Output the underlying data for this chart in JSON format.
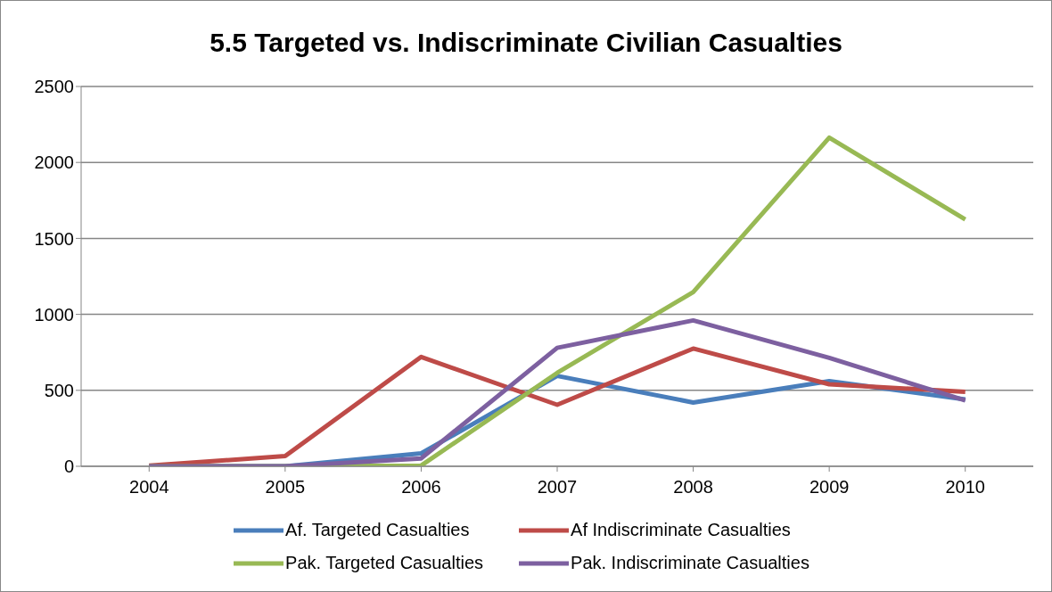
{
  "chart_data": {
    "type": "line",
    "title": "5.5 Targeted vs. Indiscriminate Civilian Casualties",
    "categories": [
      "2004",
      "2005",
      "2006",
      "2007",
      "2008",
      "2009",
      "2010"
    ],
    "series": [
      {
        "name": "Af. Targeted Casualties",
        "color": "#4a7ebb",
        "values": [
          0,
          0,
          85,
          595,
          420,
          560,
          440
        ]
      },
      {
        "name": "Af Indiscriminate Casualties",
        "color": "#be4b48",
        "values": [
          5,
          67,
          720,
          405,
          775,
          540,
          490
        ]
      },
      {
        "name": "Pak. Targeted Casualties",
        "color": "#98b954",
        "values": [
          0,
          0,
          5,
          615,
          1147,
          2163,
          1625
        ]
      },
      {
        "name": "Pak. Indiscriminate Casualties",
        "color": "#7d60a0",
        "values": [
          0,
          0,
          52,
          780,
          960,
          714,
          433
        ]
      }
    ],
    "ylim": [
      0,
      2500
    ],
    "yticks": [
      0,
      500,
      1000,
      1500,
      2000,
      2500
    ],
    "grid": "y",
    "legend": "bottom",
    "marker": "none",
    "line_style": "solid"
  }
}
